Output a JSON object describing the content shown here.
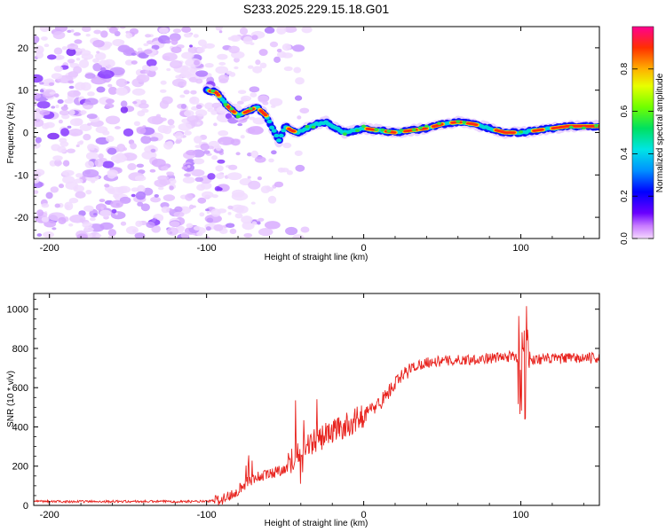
{
  "title": "S233.2025.229.15.18.G01",
  "colors": {
    "snr_line": "#e8231e",
    "scatter": "#8a2be2",
    "frame": "#000000"
  },
  "chart_data": [
    {
      "type": "heatmap",
      "name": "spectrogram",
      "xlabel": "Height of straight line (km)",
      "ylabel": "Frequency (Hz)",
      "xlim": [
        -210,
        150
      ],
      "ylim": [
        -25,
        25
      ],
      "x_ticks": [
        -200,
        -100,
        0,
        100
      ],
      "y_ticks": [
        -20,
        -10,
        0,
        10,
        20
      ],
      "colorbar": {
        "label": "Normalized spectral amplitude",
        "ticks": [
          "0.0",
          "0.2",
          "0.4",
          "0.6",
          "0.8"
        ],
        "range": [
          0,
          1
        ]
      },
      "ridge": {
        "x": [
          -100,
          -94,
          -86,
          -80,
          -74,
          -68,
          -62,
          -58,
          -54,
          -50,
          -46,
          -42,
          -36,
          -30,
          -24,
          -18,
          -12,
          -6,
          0,
          10,
          20,
          30,
          40,
          50,
          60,
          70,
          80,
          90,
          100,
          110,
          120,
          130,
          140,
          150
        ],
        "y": [
          10,
          9.5,
          6,
          4,
          5,
          6,
          4,
          1,
          -2,
          1.5,
          0.5,
          0,
          1,
          2,
          2.5,
          1,
          0,
          0.5,
          1,
          0.5,
          0,
          0.5,
          1,
          2,
          2.5,
          2,
          1,
          0,
          0,
          0.5,
          1,
          1.5,
          1.5,
          1.5
        ]
      }
    },
    {
      "type": "line",
      "name": "snr",
      "xlabel": "Height of straight line (km)",
      "ylabel": "SNR (10 * v/v)",
      "xlim": [
        -210,
        150
      ],
      "ylim": [
        0,
        1080
      ],
      "x_ticks": [
        -200,
        -100,
        0,
        100
      ],
      "y_ticks": [
        0,
        200,
        400,
        600,
        800,
        1000
      ],
      "trend": {
        "x": [
          -210,
          -100,
          -90,
          -85,
          -80,
          -75,
          -70,
          -60,
          -50,
          -45,
          -40,
          -35,
          -30,
          -20,
          -10,
          0,
          10,
          20,
          30,
          40,
          60,
          80,
          95,
          100,
          105,
          110,
          130,
          150
        ],
        "y": [
          20,
          20,
          30,
          50,
          80,
          110,
          140,
          160,
          190,
          240,
          270,
          300,
          330,
          380,
          410,
          460,
          520,
          620,
          700,
          730,
          740,
          750,
          760,
          740,
          740,
          745,
          750,
          750
        ]
      }
    }
  ]
}
